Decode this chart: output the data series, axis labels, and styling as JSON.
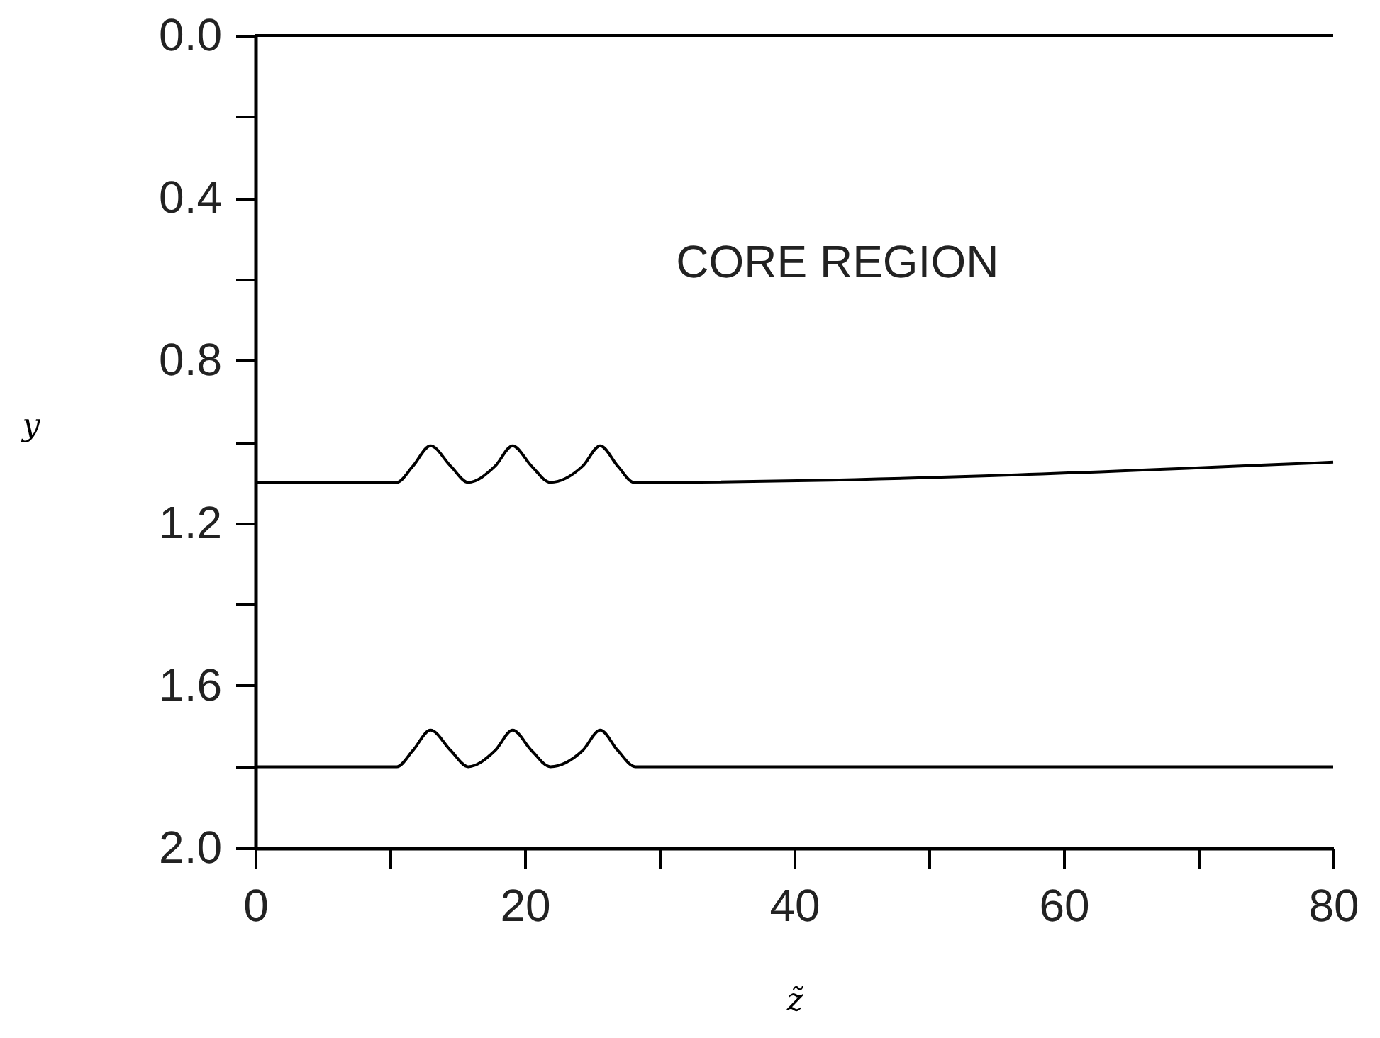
{
  "chart_data": {
    "type": "line",
    "xlabel": "z̃",
    "ylabel": "y",
    "annotations": [
      "CORE REGION"
    ],
    "series": [
      {
        "color": "#000000",
        "x": [
          0,
          80
        ],
        "values": [
          0.0,
          0.0
        ]
      },
      {
        "color": "#000000",
        "x": [
          0,
          10.5,
          11.7,
          13.0,
          14.5,
          15.8,
          17.8,
          19.1,
          20.5,
          21.9,
          24.3,
          25.6,
          26.9,
          28.1,
          80
        ],
        "values": [
          1.1,
          1.1,
          1.06,
          1.01,
          1.06,
          1.1,
          1.06,
          1.01,
          1.06,
          1.1,
          1.06,
          1.01,
          1.06,
          1.1,
          1.05
        ]
      },
      {
        "color": "#000000",
        "x": [
          0,
          10.5,
          11.7,
          13.0,
          14.5,
          15.8,
          17.8,
          19.1,
          20.5,
          21.9,
          24.3,
          25.6,
          26.9,
          28.2,
          80
        ],
        "values": [
          1.8,
          1.8,
          1.76,
          1.71,
          1.76,
          1.8,
          1.76,
          1.71,
          1.76,
          1.8,
          1.76,
          1.71,
          1.76,
          1.8,
          1.8
        ]
      }
    ],
    "xlim": [
      0,
      80
    ],
    "xticks": [
      0,
      {
        "value": 10,
        "label": null
      },
      20,
      {
        "value": 30,
        "label": null
      },
      40,
      {
        "value": 50,
        "label": null
      },
      60,
      {
        "value": 70,
        "label": null
      },
      80
    ],
    "ylim": [
      2.0,
      0.0
    ],
    "yticks": [
      {
        "value": 0,
        "label": "0.0"
      },
      {
        "value": 0.2,
        "label": null
      },
      {
        "value": 0.4,
        "label": "0.4"
      },
      {
        "value": 0.6,
        "label": null
      },
      {
        "value": 0.8,
        "label": "0.8"
      },
      {
        "value": 1.0,
        "label": null
      },
      {
        "value": 1.2,
        "label": "1.2"
      },
      {
        "value": 1.4,
        "label": null
      },
      {
        "value": 1.6,
        "label": "1.6"
      },
      {
        "value": 1.8,
        "label": null
      },
      {
        "value": 2.0,
        "label": "2.0"
      }
    ],
    "legend": false,
    "marker": "none",
    "line_style": "solid"
  }
}
